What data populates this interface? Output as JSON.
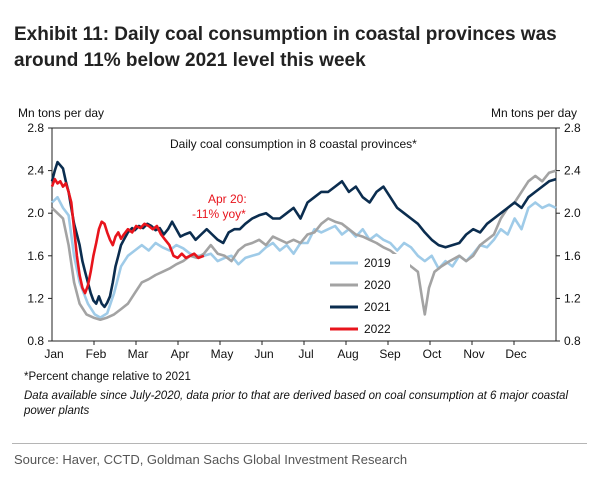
{
  "header": {
    "title_line1": "Exhibit 11: Daily coal consumption in coastal provinces was",
    "title_line2": "around 11% below 2021 level this week"
  },
  "notes": {
    "percent_note": "*Percent change relative to 2021",
    "data_note": "Data available since July-2020, data prior to that are derived based on coal consumption at 6 major coastal power plants"
  },
  "source": "Source: Haver, CCTD, Goldman Sachs Global Investment Research",
  "chart_data": {
    "type": "line",
    "title": "Daily coal consumption in 8 coastal provinces*",
    "ylabel_left": "Mn tons per day",
    "ylabel_right": "Mn tons per day",
    "ylim": [
      0.8,
      2.8
    ],
    "yticks": [
      "0.8",
      "1.2",
      "1.6",
      "2.0",
      "2.4",
      "2.8"
    ],
    "x_months": [
      "Jan",
      "Feb",
      "Mar",
      "Apr",
      "May",
      "Jun",
      "Jul",
      "Aug",
      "Sep",
      "Oct",
      "Nov",
      "Dec"
    ],
    "grid": false,
    "legend_position": "center-right",
    "annotation": {
      "line1": "Apr 20:",
      "line2": "-11% yoy*",
      "color": "#e8141c"
    },
    "series": [
      {
        "name": "2019",
        "color": "#9fcbe8",
        "points": [
          [
            0,
            2.1
          ],
          [
            4,
            2.15
          ],
          [
            8,
            2.05
          ],
          [
            12,
            1.98
          ],
          [
            16,
            1.6
          ],
          [
            20,
            1.35
          ],
          [
            26,
            1.15
          ],
          [
            31,
            1.05
          ],
          [
            35,
            1.02
          ],
          [
            40,
            1.06
          ],
          [
            45,
            1.25
          ],
          [
            50,
            1.5
          ],
          [
            55,
            1.6
          ],
          [
            60,
            1.65
          ],
          [
            65,
            1.7
          ],
          [
            70,
            1.65
          ],
          [
            75,
            1.72
          ],
          [
            80,
            1.68
          ],
          [
            85,
            1.65
          ],
          [
            90,
            1.7
          ],
          [
            95,
            1.67
          ],
          [
            100,
            1.62
          ],
          [
            105,
            1.6
          ],
          [
            110,
            1.6
          ],
          [
            115,
            1.62
          ],
          [
            120,
            1.55
          ],
          [
            125,
            1.58
          ],
          [
            130,
            1.6
          ],
          [
            135,
            1.52
          ],
          [
            140,
            1.58
          ],
          [
            145,
            1.6
          ],
          [
            150,
            1.62
          ],
          [
            155,
            1.68
          ],
          [
            160,
            1.72
          ],
          [
            165,
            1.65
          ],
          [
            170,
            1.7
          ],
          [
            175,
            1.62
          ],
          [
            180,
            1.72
          ],
          [
            185,
            1.72
          ],
          [
            190,
            1.85
          ],
          [
            195,
            1.82
          ],
          [
            200,
            1.85
          ],
          [
            205,
            1.88
          ],
          [
            210,
            1.8
          ],
          [
            215,
            1.85
          ],
          [
            220,
            1.78
          ],
          [
            225,
            1.85
          ],
          [
            230,
            1.75
          ],
          [
            235,
            1.8
          ],
          [
            240,
            1.75
          ],
          [
            245,
            1.72
          ],
          [
            250,
            1.65
          ],
          [
            255,
            1.72
          ],
          [
            260,
            1.68
          ],
          [
            265,
            1.6
          ],
          [
            270,
            1.55
          ],
          [
            275,
            1.6
          ],
          [
            280,
            1.48
          ],
          [
            285,
            1.55
          ],
          [
            290,
            1.5
          ],
          [
            295,
            1.6
          ],
          [
            300,
            1.55
          ],
          [
            305,
            1.62
          ],
          [
            310,
            1.7
          ],
          [
            315,
            1.68
          ],
          [
            320,
            1.75
          ],
          [
            325,
            1.85
          ],
          [
            330,
            1.8
          ],
          [
            335,
            1.95
          ],
          [
            340,
            1.85
          ],
          [
            345,
            2.05
          ],
          [
            350,
            2.1
          ],
          [
            355,
            2.05
          ],
          [
            360,
            2.08
          ],
          [
            365,
            2.05
          ]
        ]
      },
      {
        "name": "2020",
        "color": "#a3a3a3",
        "points": [
          [
            0,
            2.05
          ],
          [
            4,
            2.0
          ],
          [
            8,
            1.95
          ],
          [
            12,
            1.7
          ],
          [
            16,
            1.35
          ],
          [
            20,
            1.15
          ],
          [
            25,
            1.05
          ],
          [
            30,
            1.02
          ],
          [
            35,
            1.0
          ],
          [
            40,
            1.02
          ],
          [
            45,
            1.05
          ],
          [
            50,
            1.1
          ],
          [
            55,
            1.15
          ],
          [
            60,
            1.25
          ],
          [
            65,
            1.35
          ],
          [
            70,
            1.38
          ],
          [
            75,
            1.42
          ],
          [
            80,
            1.45
          ],
          [
            85,
            1.48
          ],
          [
            90,
            1.52
          ],
          [
            95,
            1.55
          ],
          [
            100,
            1.6
          ],
          [
            105,
            1.58
          ],
          [
            110,
            1.62
          ],
          [
            115,
            1.7
          ],
          [
            120,
            1.62
          ],
          [
            125,
            1.6
          ],
          [
            130,
            1.55
          ],
          [
            135,
            1.65
          ],
          [
            140,
            1.7
          ],
          [
            145,
            1.72
          ],
          [
            150,
            1.75
          ],
          [
            155,
            1.7
          ],
          [
            160,
            1.78
          ],
          [
            165,
            1.75
          ],
          [
            170,
            1.72
          ],
          [
            175,
            1.75
          ],
          [
            180,
            1.72
          ],
          [
            185,
            1.8
          ],
          [
            190,
            1.82
          ],
          [
            195,
            1.9
          ],
          [
            200,
            1.95
          ],
          [
            205,
            1.92
          ],
          [
            210,
            1.9
          ],
          [
            215,
            1.85
          ],
          [
            220,
            1.8
          ],
          [
            225,
            1.78
          ],
          [
            230,
            1.75
          ],
          [
            235,
            1.72
          ],
          [
            240,
            1.68
          ],
          [
            245,
            1.65
          ],
          [
            250,
            1.6
          ],
          [
            255,
            1.55
          ],
          [
            260,
            1.5
          ],
          [
            265,
            1.45
          ],
          [
            268,
            1.2
          ],
          [
            270,
            1.05
          ],
          [
            273,
            1.3
          ],
          [
            277,
            1.45
          ],
          [
            282,
            1.5
          ],
          [
            288,
            1.55
          ],
          [
            295,
            1.6
          ],
          [
            300,
            1.55
          ],
          [
            305,
            1.6
          ],
          [
            310,
            1.7
          ],
          [
            315,
            1.75
          ],
          [
            320,
            1.8
          ],
          [
            325,
            1.95
          ],
          [
            330,
            2.05
          ],
          [
            335,
            2.1
          ],
          [
            340,
            2.2
          ],
          [
            345,
            2.3
          ],
          [
            350,
            2.35
          ],
          [
            355,
            2.3
          ],
          [
            360,
            2.38
          ],
          [
            365,
            2.4
          ]
        ]
      },
      {
        "name": "2021",
        "color": "#0b2d4f",
        "points": [
          [
            0,
            2.3
          ],
          [
            2,
            2.4
          ],
          [
            4,
            2.48
          ],
          [
            6,
            2.45
          ],
          [
            8,
            2.42
          ],
          [
            10,
            2.3
          ],
          [
            12,
            2.2
          ],
          [
            14,
            2.05
          ],
          [
            16,
            1.9
          ],
          [
            18,
            1.8
          ],
          [
            20,
            1.7
          ],
          [
            22,
            1.55
          ],
          [
            24,
            1.45
          ],
          [
            26,
            1.35
          ],
          [
            28,
            1.25
          ],
          [
            30,
            1.18
          ],
          [
            32,
            1.15
          ],
          [
            34,
            1.22
          ],
          [
            36,
            1.15
          ],
          [
            38,
            1.12
          ],
          [
            40,
            1.16
          ],
          [
            42,
            1.22
          ],
          [
            44,
            1.35
          ],
          [
            46,
            1.5
          ],
          [
            48,
            1.6
          ],
          [
            50,
            1.7
          ],
          [
            52,
            1.75
          ],
          [
            55,
            1.82
          ],
          [
            58,
            1.86
          ],
          [
            60,
            1.84
          ],
          [
            63,
            1.88
          ],
          [
            66,
            1.86
          ],
          [
            69,
            1.9
          ],
          [
            72,
            1.88
          ],
          [
            75,
            1.84
          ],
          [
            78,
            1.86
          ],
          [
            81,
            1.8
          ],
          [
            84,
            1.85
          ],
          [
            87,
            1.92
          ],
          [
            90,
            1.85
          ],
          [
            93,
            1.78
          ],
          [
            96,
            1.8
          ],
          [
            100,
            1.82
          ],
          [
            104,
            1.75
          ],
          [
            108,
            1.8
          ],
          [
            112,
            1.85
          ],
          [
            116,
            1.8
          ],
          [
            120,
            1.75
          ],
          [
            124,
            1.72
          ],
          [
            128,
            1.82
          ],
          [
            132,
            1.85
          ],
          [
            136,
            1.85
          ],
          [
            140,
            1.9
          ],
          [
            145,
            1.95
          ],
          [
            150,
            1.98
          ],
          [
            155,
            2.0
          ],
          [
            160,
            1.95
          ],
          [
            165,
            1.95
          ],
          [
            170,
            2.0
          ],
          [
            175,
            2.05
          ],
          [
            180,
            1.95
          ],
          [
            185,
            2.1
          ],
          [
            190,
            2.15
          ],
          [
            195,
            2.2
          ],
          [
            200,
            2.2
          ],
          [
            205,
            2.25
          ],
          [
            210,
            2.3
          ],
          [
            215,
            2.2
          ],
          [
            220,
            2.25
          ],
          [
            225,
            2.15
          ],
          [
            230,
            2.1
          ],
          [
            235,
            2.2
          ],
          [
            240,
            2.25
          ],
          [
            245,
            2.15
          ],
          [
            250,
            2.05
          ],
          [
            255,
            2.0
          ],
          [
            260,
            1.95
          ],
          [
            265,
            1.9
          ],
          [
            270,
            1.82
          ],
          [
            275,
            1.75
          ],
          [
            280,
            1.7
          ],
          [
            285,
            1.68
          ],
          [
            290,
            1.7
          ],
          [
            295,
            1.72
          ],
          [
            300,
            1.8
          ],
          [
            305,
            1.85
          ],
          [
            310,
            1.82
          ],
          [
            315,
            1.9
          ],
          [
            320,
            1.95
          ],
          [
            325,
            2.0
          ],
          [
            330,
            2.05
          ],
          [
            335,
            2.1
          ],
          [
            340,
            2.05
          ],
          [
            345,
            2.15
          ],
          [
            350,
            2.2
          ],
          [
            355,
            2.25
          ],
          [
            360,
            2.3
          ],
          [
            365,
            2.32
          ]
        ]
      },
      {
        "name": "2022",
        "color": "#e8141c",
        "points": [
          [
            0,
            2.25
          ],
          [
            2,
            2.32
          ],
          [
            4,
            2.28
          ],
          [
            6,
            2.3
          ],
          [
            8,
            2.25
          ],
          [
            10,
            2.28
          ],
          [
            12,
            2.2
          ],
          [
            14,
            2.1
          ],
          [
            16,
            1.85
          ],
          [
            18,
            1.6
          ],
          [
            20,
            1.42
          ],
          [
            22,
            1.3
          ],
          [
            24,
            1.25
          ],
          [
            26,
            1.32
          ],
          [
            28,
            1.45
          ],
          [
            30,
            1.6
          ],
          [
            32,
            1.72
          ],
          [
            34,
            1.85
          ],
          [
            36,
            1.92
          ],
          [
            38,
            1.9
          ],
          [
            40,
            1.82
          ],
          [
            42,
            1.75
          ],
          [
            44,
            1.7
          ],
          [
            46,
            1.78
          ],
          [
            48,
            1.82
          ],
          [
            50,
            1.76
          ],
          [
            52,
            1.8
          ],
          [
            55,
            1.85
          ],
          [
            58,
            1.82
          ],
          [
            61,
            1.88
          ],
          [
            64,
            1.86
          ],
          [
            67,
            1.9
          ],
          [
            70,
            1.88
          ],
          [
            73,
            1.85
          ],
          [
            76,
            1.88
          ],
          [
            79,
            1.8
          ],
          [
            82,
            1.75
          ],
          [
            85,
            1.7
          ],
          [
            88,
            1.6
          ],
          [
            91,
            1.58
          ],
          [
            94,
            1.62
          ],
          [
            97,
            1.58
          ],
          [
            100,
            1.6
          ],
          [
            103,
            1.62
          ],
          [
            106,
            1.58
          ],
          [
            110,
            1.6
          ]
        ]
      }
    ]
  }
}
